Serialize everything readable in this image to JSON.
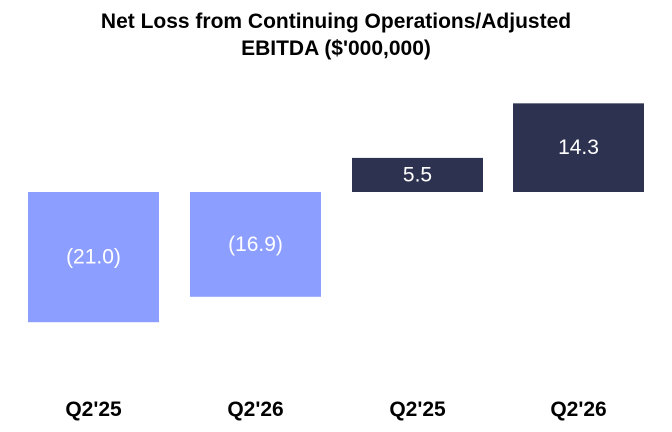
{
  "chart_data": {
    "type": "bar",
    "title_line1": "Net Loss from Continuing Operations/Adjusted",
    "title_line2": "EBITDA ($'000,000)",
    "categories": [
      "Q2'25",
      "Q2'26",
      "Q2'25",
      "Q2'26"
    ],
    "values": [
      -21.0,
      -16.9,
      5.5,
      14.3
    ],
    "value_labels": [
      "(21.0)",
      "(16.9)",
      "5.5",
      "14.3"
    ],
    "bar_colors": [
      "#8c9eff",
      "#8c9eff",
      "#2d3250",
      "#2d3250"
    ],
    "ylim": [
      -21.0,
      14.3
    ],
    "grid": false,
    "legend": "none"
  }
}
